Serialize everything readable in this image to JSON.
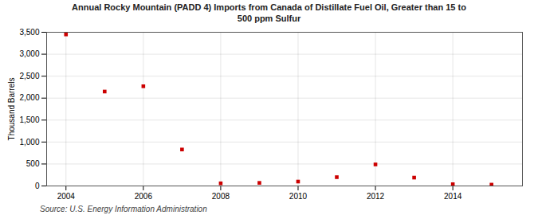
{
  "chart_data": {
    "type": "scatter",
    "title": "Annual Rocky Mountain (PADD 4) Imports from Canada of Distillate Fuel Oil, Greater than 15 to\n500 ppm Sulfur",
    "ylabel": "Thousand Barrels",
    "source": "Source: U.S. Energy Information Administration",
    "x": [
      2004,
      2005,
      2006,
      2007,
      2008,
      2009,
      2010,
      2011,
      2012,
      2013,
      2014,
      2015
    ],
    "values": [
      3450,
      2150,
      2270,
      830,
      60,
      70,
      100,
      200,
      490,
      190,
      40,
      30
    ],
    "color": "#cc0000",
    "marker": "square",
    "xlim": [
      2003.5,
      2015.8
    ],
    "xticks": [
      2004,
      2006,
      2008,
      2010,
      2012,
      2014
    ],
    "ylim": [
      0,
      3500
    ],
    "yticks": [
      0,
      500,
      {
        "value": 1000,
        "label": "1,000"
      },
      {
        "value": 1500,
        "label": "1,500"
      },
      {
        "value": 2000,
        "label": "2,000"
      },
      {
        "value": 2500,
        "label": "2,500"
      },
      {
        "value": 3000,
        "label": "3,000"
      },
      {
        "value": 3500,
        "label": "3,500"
      }
    ],
    "grid": true
  }
}
